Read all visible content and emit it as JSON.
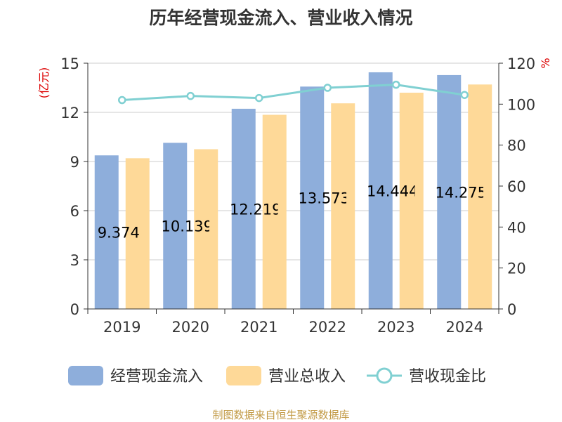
{
  "title": "历年经营现金流入、营业收入情况",
  "source": "制图数据来自恒生聚源数据库",
  "colors": {
    "cash": "#8eaedb",
    "revenue": "#fed998",
    "ratio": "#80d0d2",
    "axis_unit": "#dd0000",
    "axis_text": "#333333",
    "grid": "#cccccc",
    "source": "#c29a45"
  },
  "chart_data": {
    "type": "bar",
    "title": "历年经营现金流入、营业收入情况",
    "categories": [
      "2019",
      "2020",
      "2021",
      "2022",
      "2023",
      "2024"
    ],
    "y_left": {
      "unit": "(亿元)",
      "ylim": [
        0,
        15
      ],
      "ticks": [
        0,
        3,
        6,
        9,
        12,
        15
      ]
    },
    "y_right": {
      "unit": "%",
      "ylim": [
        0,
        120
      ],
      "ticks": [
        0,
        20,
        40,
        60,
        80,
        100,
        120
      ]
    },
    "series": [
      {
        "name": "经营现金流入",
        "type": "bar",
        "axis": "left",
        "values": [
          9.374,
          10.139,
          12.219,
          13.573,
          14.444,
          14.275
        ],
        "labels": [
          "9.374",
          "10.139",
          "12.219",
          "13.573",
          "14.444",
          "14.275"
        ]
      },
      {
        "name": "营业总收入",
        "type": "bar",
        "axis": "left",
        "values": [
          9.2,
          9.75,
          11.85,
          12.55,
          13.2,
          13.7
        ]
      },
      {
        "name": "营收现金比",
        "type": "line",
        "axis": "right",
        "values": [
          102,
          104,
          103,
          108,
          109.5,
          104.5
        ]
      }
    ],
    "grid": true,
    "legend_position": "bottom"
  }
}
